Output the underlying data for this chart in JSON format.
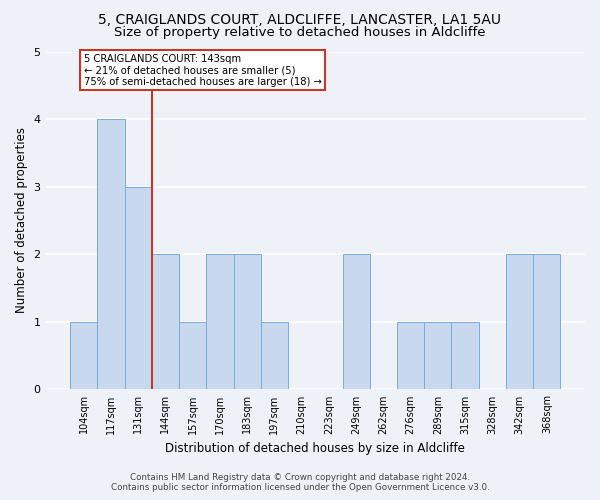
{
  "title_line1": "5, CRAIGLANDS COURT, ALDCLIFFE, LANCASTER, LA1 5AU",
  "title_line2": "Size of property relative to detached houses in Aldcliffe",
  "xlabel": "Distribution of detached houses by size in Aldcliffe",
  "ylabel": "Number of detached properties",
  "footer_line1": "Contains HM Land Registry data © Crown copyright and database right 2024.",
  "footer_line2": "Contains public sector information licensed under the Open Government Licence v3.0.",
  "annotation_title": "5 CRAIGLANDS COURT: 143sqm",
  "annotation_line1": "← 21% of detached houses are smaller (5)",
  "annotation_line2": "75% of semi-detached houses are larger (18) →",
  "bar_labels": [
    "104sqm",
    "117sqm",
    "131sqm",
    "144sqm",
    "157sqm",
    "170sqm",
    "183sqm",
    "197sqm",
    "210sqm",
    "223sqm",
    "249sqm",
    "262sqm",
    "276sqm",
    "289sqm",
    "315sqm",
    "328sqm",
    "342sqm",
    "368sqm"
  ],
  "bar_values": [
    1,
    4,
    3,
    2,
    1,
    2,
    2,
    1,
    0,
    0,
    2,
    0,
    1,
    1,
    1,
    0,
    2,
    2
  ],
  "bar_color": "#c8d9ef",
  "bar_edge_color": "#7aadd4",
  "highlight_line_color": "#c0392b",
  "annotation_box_color": "#c0392b",
  "background_color": "#eef2f8",
  "plot_background_color": "#eef2f8",
  "ylim": [
    0,
    5
  ],
  "yticks": [
    0,
    1,
    2,
    3,
    4,
    5
  ],
  "grid_color": "#ffffff",
  "title_fontsize": 10,
  "subtitle_fontsize": 9.5,
  "axis_label_fontsize": 8.5,
  "tick_fontsize": 7
}
